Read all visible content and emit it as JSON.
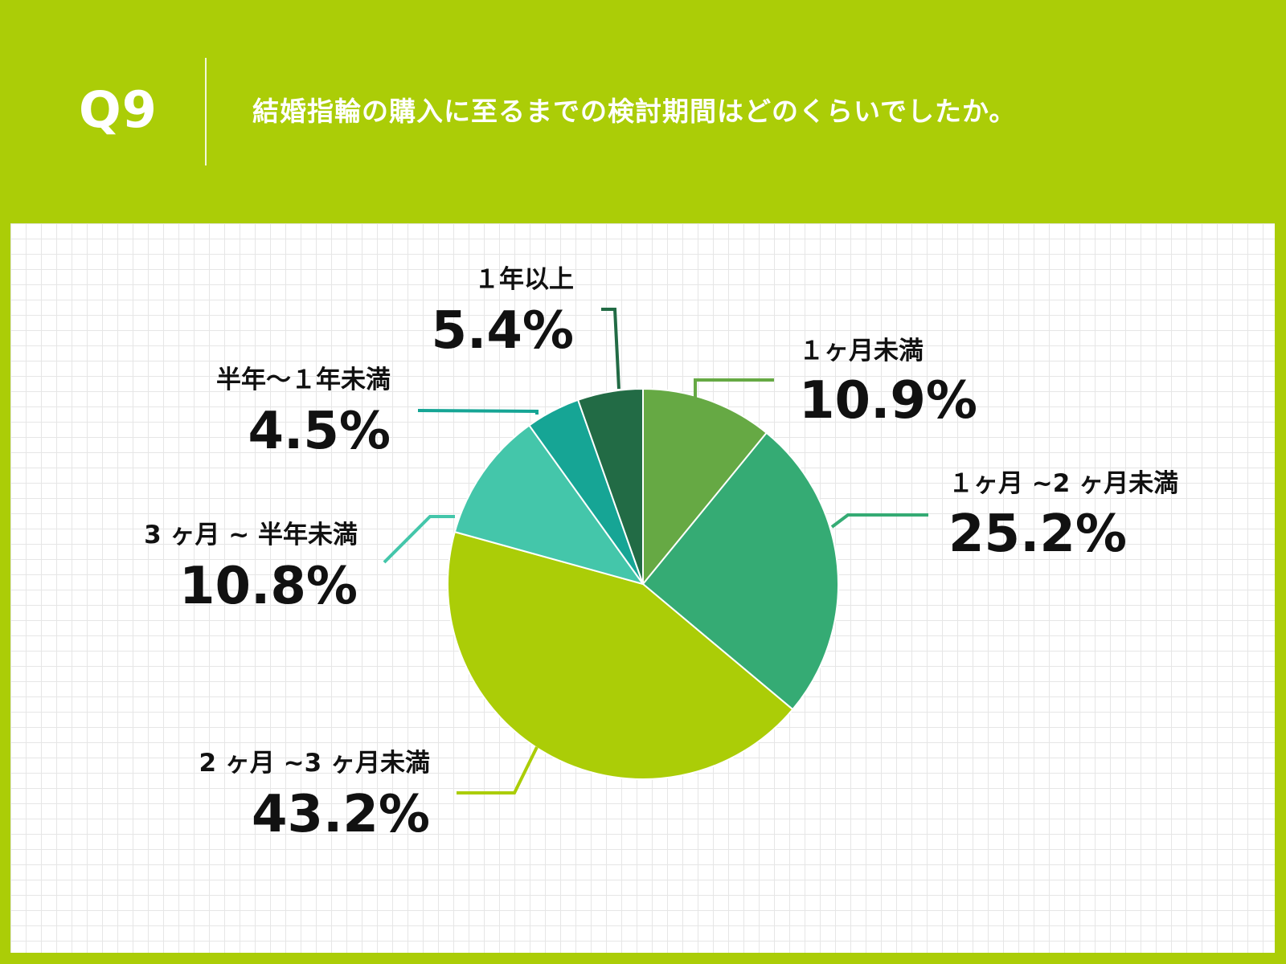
{
  "header": {
    "q_number": "Q9",
    "question": "結婚指輪の購入に至るまでの検討期間はどのくらいでしたか。"
  },
  "colors": {
    "background": "#abcd07",
    "panel": "#ffffff"
  },
  "chart_data": {
    "type": "pie",
    "title": "",
    "start_angle_deg": 0,
    "direction": "clockwise",
    "categories": [
      "１ヶ月未満",
      "１ヶ月 ~2 ヶ月未満",
      "2 ヶ月 ~3 ヶ月未満",
      "3 ヶ月 ~ 半年未満",
      "半年〜１年未満",
      "１年以上"
    ],
    "values": [
      10.9,
      25.2,
      43.2,
      10.8,
      4.5,
      5.4
    ],
    "value_labels": [
      "10.9%",
      "25.2%",
      "43.2%",
      "10.8%",
      "4.5%",
      "5.4%"
    ],
    "colors": [
      "#66a944",
      "#35ab74",
      "#abcd07",
      "#44c6aa",
      "#16a595",
      "#226b45"
    ]
  }
}
